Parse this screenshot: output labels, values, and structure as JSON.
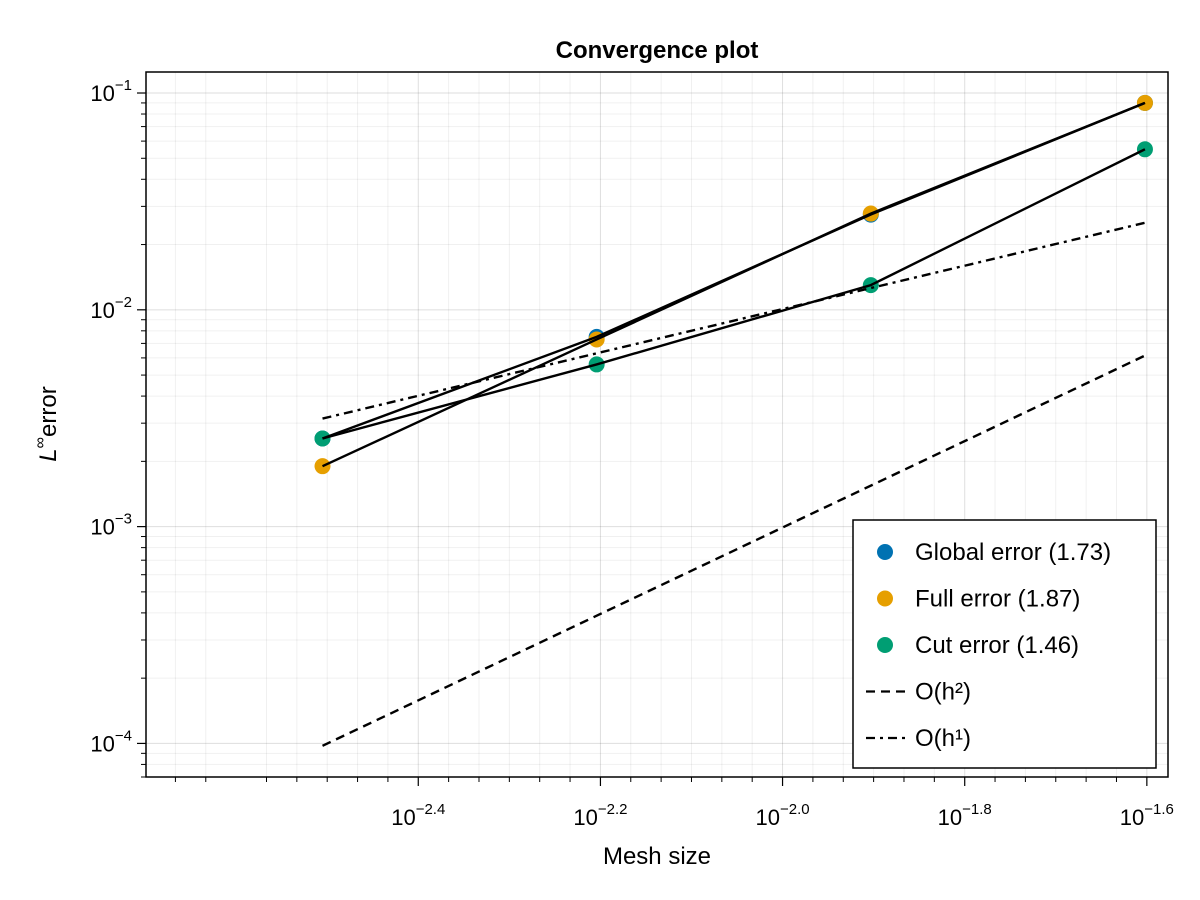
{
  "chart_data": {
    "type": "scatter",
    "title": "Convergence plot",
    "xlabel": "Mesh size",
    "ylabel": {
      "base": "L",
      "sup": "∞",
      "rest": "error"
    },
    "xscale": "log10",
    "yscale": "log10",
    "xlim": [
      0.002,
      0.0265
    ],
    "ylim": [
      7e-05,
      0.125
    ],
    "grid": true,
    "legend_position": "bottom-right",
    "x_ticks": [
      {
        "value": 0.003981,
        "base": "10",
        "exp": "−2.4"
      },
      {
        "value": 0.00631,
        "base": "10",
        "exp": "−2.2"
      },
      {
        "value": 0.01,
        "base": "10",
        "exp": "−2.0"
      },
      {
        "value": 0.01585,
        "base": "10",
        "exp": "−1.8"
      },
      {
        "value": 0.02512,
        "base": "10",
        "exp": "−1.6"
      }
    ],
    "y_ticks": [
      {
        "value": 0.0001,
        "base": "10",
        "exp": "−4"
      },
      {
        "value": 0.001,
        "base": "10",
        "exp": "−3"
      },
      {
        "value": 0.01,
        "base": "10",
        "exp": "−2"
      },
      {
        "value": 0.1,
        "base": "10",
        "exp": "−1"
      }
    ],
    "x": [
      0.003125,
      0.00625,
      0.0125,
      0.025
    ],
    "series": [
      {
        "name": "Global error (1.73)",
        "color": "#0072b2",
        "marker": "circle",
        "line": "solid",
        "y": [
          0.00255,
          0.0075,
          0.0275,
          0.09
        ]
      },
      {
        "name": "Full error (1.87)",
        "color": "#e69f00",
        "marker": "circle",
        "line": "solid",
        "y": [
          0.0019,
          0.0073,
          0.0278,
          0.09
        ]
      },
      {
        "name": "Cut error (1.46)",
        "color": "#009e73",
        "marker": "circle",
        "line": "solid",
        "y": [
          0.00255,
          0.0056,
          0.013,
          0.055
        ]
      }
    ],
    "reference_lines": [
      {
        "name": "O(h²)",
        "style": "dashed",
        "x": [
          0.003125,
          0.025
        ],
        "y": [
          9.75e-05,
          0.00615
        ]
      },
      {
        "name": "O(h¹)",
        "style": "dashdot",
        "x": [
          0.003125,
          0.025
        ],
        "y": [
          0.00315,
          0.0252
        ]
      }
    ]
  }
}
